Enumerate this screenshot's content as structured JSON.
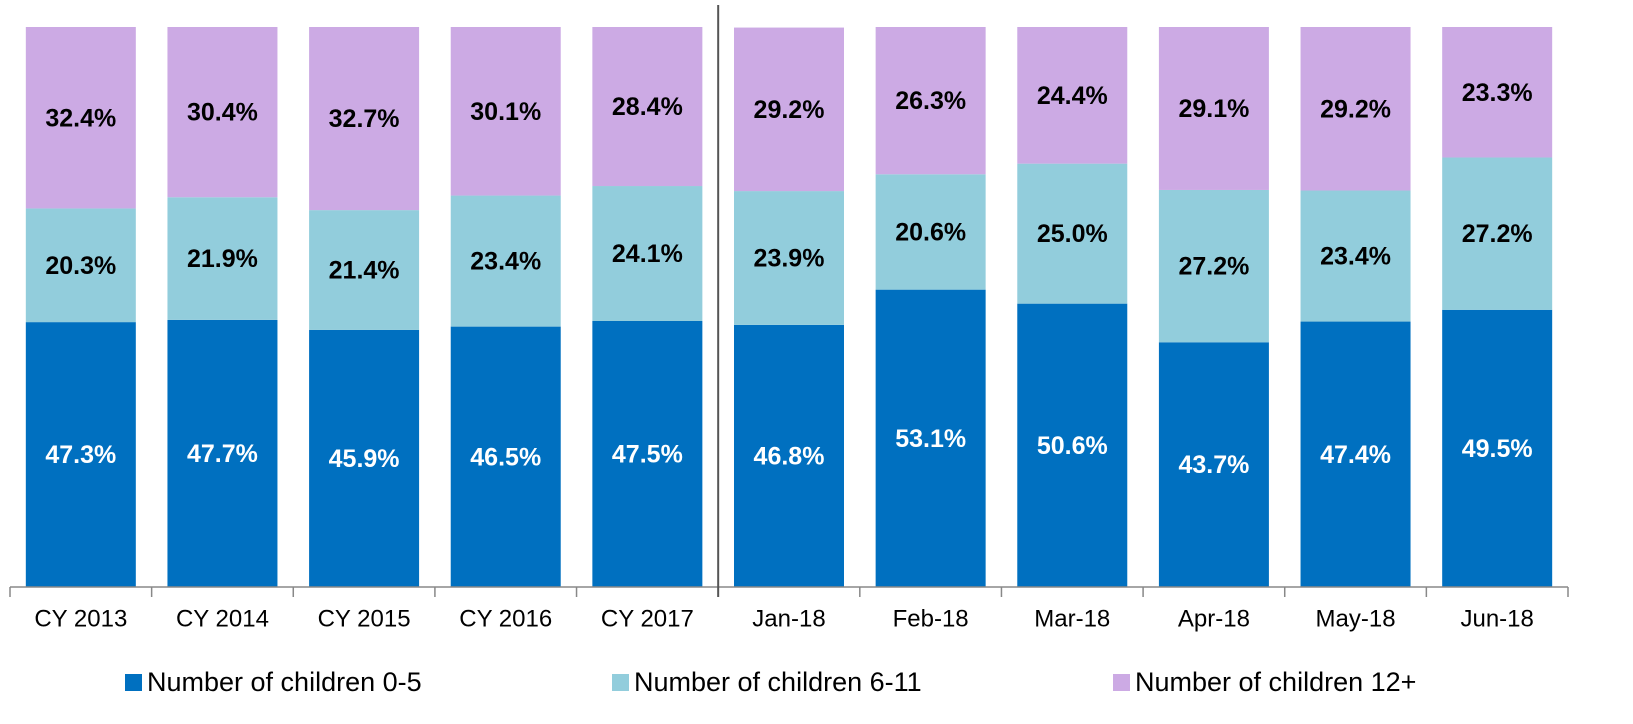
{
  "chart_data": {
    "type": "stacked_bar",
    "categories": [
      "CY 2013",
      "CY 2014",
      "CY 2015",
      "CY 2016",
      "CY 2017",
      "Jan-18",
      "Feb-18",
      "Mar-18",
      "Apr-18",
      "May-18",
      "Jun-18"
    ],
    "ylim": [
      0,
      100
    ],
    "series": [
      {
        "name": "Number of children 0-5",
        "color": "#0070c0",
        "label_color": "#ffffff",
        "values": [
          47.3,
          47.7,
          45.9,
          46.5,
          47.5,
          46.8,
          53.1,
          50.6,
          43.7,
          47.4,
          49.5
        ],
        "value_labels": [
          "47.3%",
          "47.7%",
          "45.9%",
          "46.5%",
          "47.5%",
          "46.8%",
          "53.1%",
          "50.6%",
          "43.7%",
          "47.4%",
          "49.5%"
        ]
      },
      {
        "name": "Number of children 6-11",
        "color": "#92cddc",
        "label_color": "#000000",
        "values": [
          20.3,
          21.9,
          21.4,
          23.4,
          24.1,
          23.9,
          20.6,
          25.0,
          27.2,
          23.4,
          27.2
        ],
        "value_labels": [
          "20.3%",
          "21.9%",
          "21.4%",
          "23.4%",
          "24.1%",
          "23.9%",
          "20.6%",
          "25.0%",
          "27.2%",
          "23.4%",
          "27.2%"
        ]
      },
      {
        "name": "Number of children 12+",
        "color": "#ccaae4",
        "label_color": "#000000",
        "values": [
          32.4,
          30.4,
          32.7,
          30.1,
          28.4,
          29.2,
          26.3,
          24.4,
          29.1,
          29.2,
          23.3
        ],
        "value_labels": [
          "32.4%",
          "30.4%",
          "32.7%",
          "30.1%",
          "28.4%",
          "29.2%",
          "26.3%",
          "24.4%",
          "29.1%",
          "29.2%",
          "23.3%"
        ]
      }
    ]
  }
}
